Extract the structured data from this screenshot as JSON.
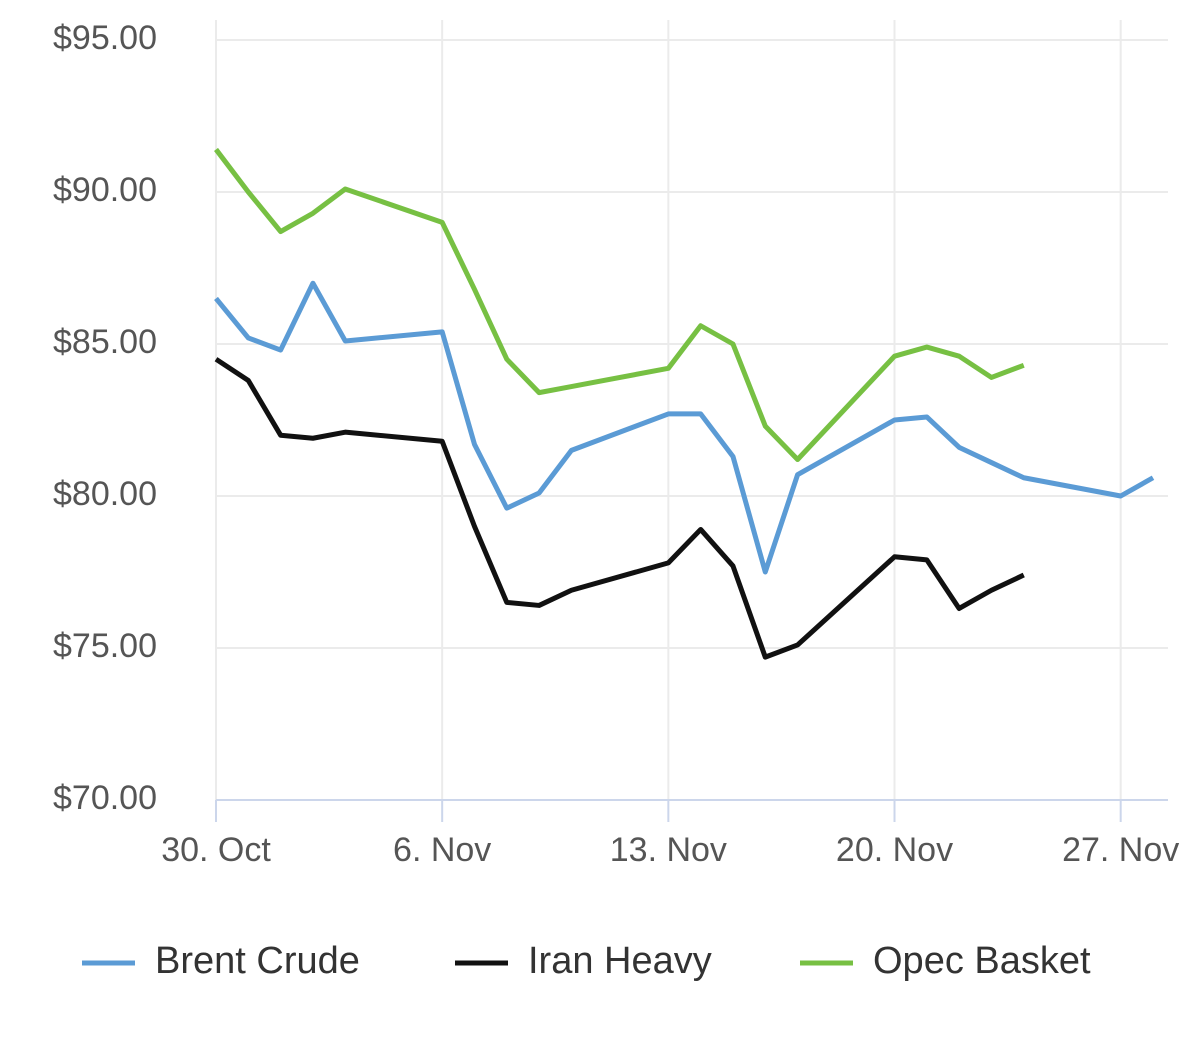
{
  "chart_data": {
    "type": "line",
    "x": [
      "30. Oct",
      "31. Oct",
      "1. Nov",
      "2. Nov",
      "3. Nov",
      "6. Nov",
      "7. Nov",
      "8. Nov",
      "9. Nov",
      "10. Nov",
      "13. Nov",
      "14. Nov",
      "15. Nov",
      "16. Nov",
      "17. Nov",
      "20. Nov",
      "21. Nov",
      "22. Nov",
      "23. Nov",
      "24. Nov",
      "27. Nov",
      "28. Nov"
    ],
    "xlim": [
      "30. Oct",
      "28. Nov"
    ],
    "xticks": [
      "30. Oct",
      "6. Nov",
      "13. Nov",
      "20. Nov",
      "27. Nov"
    ],
    "ylim": [
      70,
      95
    ],
    "yticks": [
      {
        "value": 70,
        "label": "$70.00"
      },
      {
        "value": 75,
        "label": "$75.00"
      },
      {
        "value": 80,
        "label": "$80.00"
      },
      {
        "value": 85,
        "label": "$85.00"
      },
      {
        "value": 90,
        "label": "$90.00"
      },
      {
        "value": 95,
        "label": "$95.00"
      }
    ],
    "grid": true,
    "legend": "bottom",
    "series": [
      {
        "name": "Brent Crude",
        "color": "#5b9bd5",
        "values": [
          86.5,
          85.2,
          84.8,
          87.0,
          85.1,
          85.4,
          81.7,
          79.6,
          80.1,
          81.5,
          82.7,
          82.7,
          81.3,
          77.5,
          80.7,
          82.5,
          82.6,
          81.6,
          81.1,
          80.6,
          80.0,
          80.6
        ]
      },
      {
        "name": "Iran Heavy",
        "color": "#111111",
        "values": [
          84.5,
          83.8,
          82.0,
          81.9,
          82.1,
          81.8,
          79.0,
          76.5,
          76.4,
          76.9,
          77.8,
          78.9,
          77.7,
          74.7,
          75.1,
          78.0,
          77.9,
          76.3,
          76.9,
          77.4,
          null,
          null
        ]
      },
      {
        "name": "Opec Basket",
        "color": "#77c043",
        "values": [
          91.4,
          90.0,
          88.7,
          89.3,
          90.1,
          89.0,
          86.8,
          84.5,
          83.4,
          83.6,
          84.2,
          85.6,
          85.0,
          82.3,
          81.2,
          84.6,
          84.9,
          84.6,
          83.9,
          84.3,
          null,
          null
        ]
      }
    ]
  }
}
